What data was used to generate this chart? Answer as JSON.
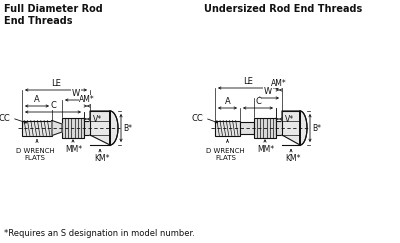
{
  "bg_color": "#ffffff",
  "title_left": "Full Diameter Rod\nEnd Threads",
  "title_right": "Undersized Rod End Threads",
  "footnote": "*Requires an S designation in model number.",
  "text_color": "#111111",
  "line_color": "#111111"
}
